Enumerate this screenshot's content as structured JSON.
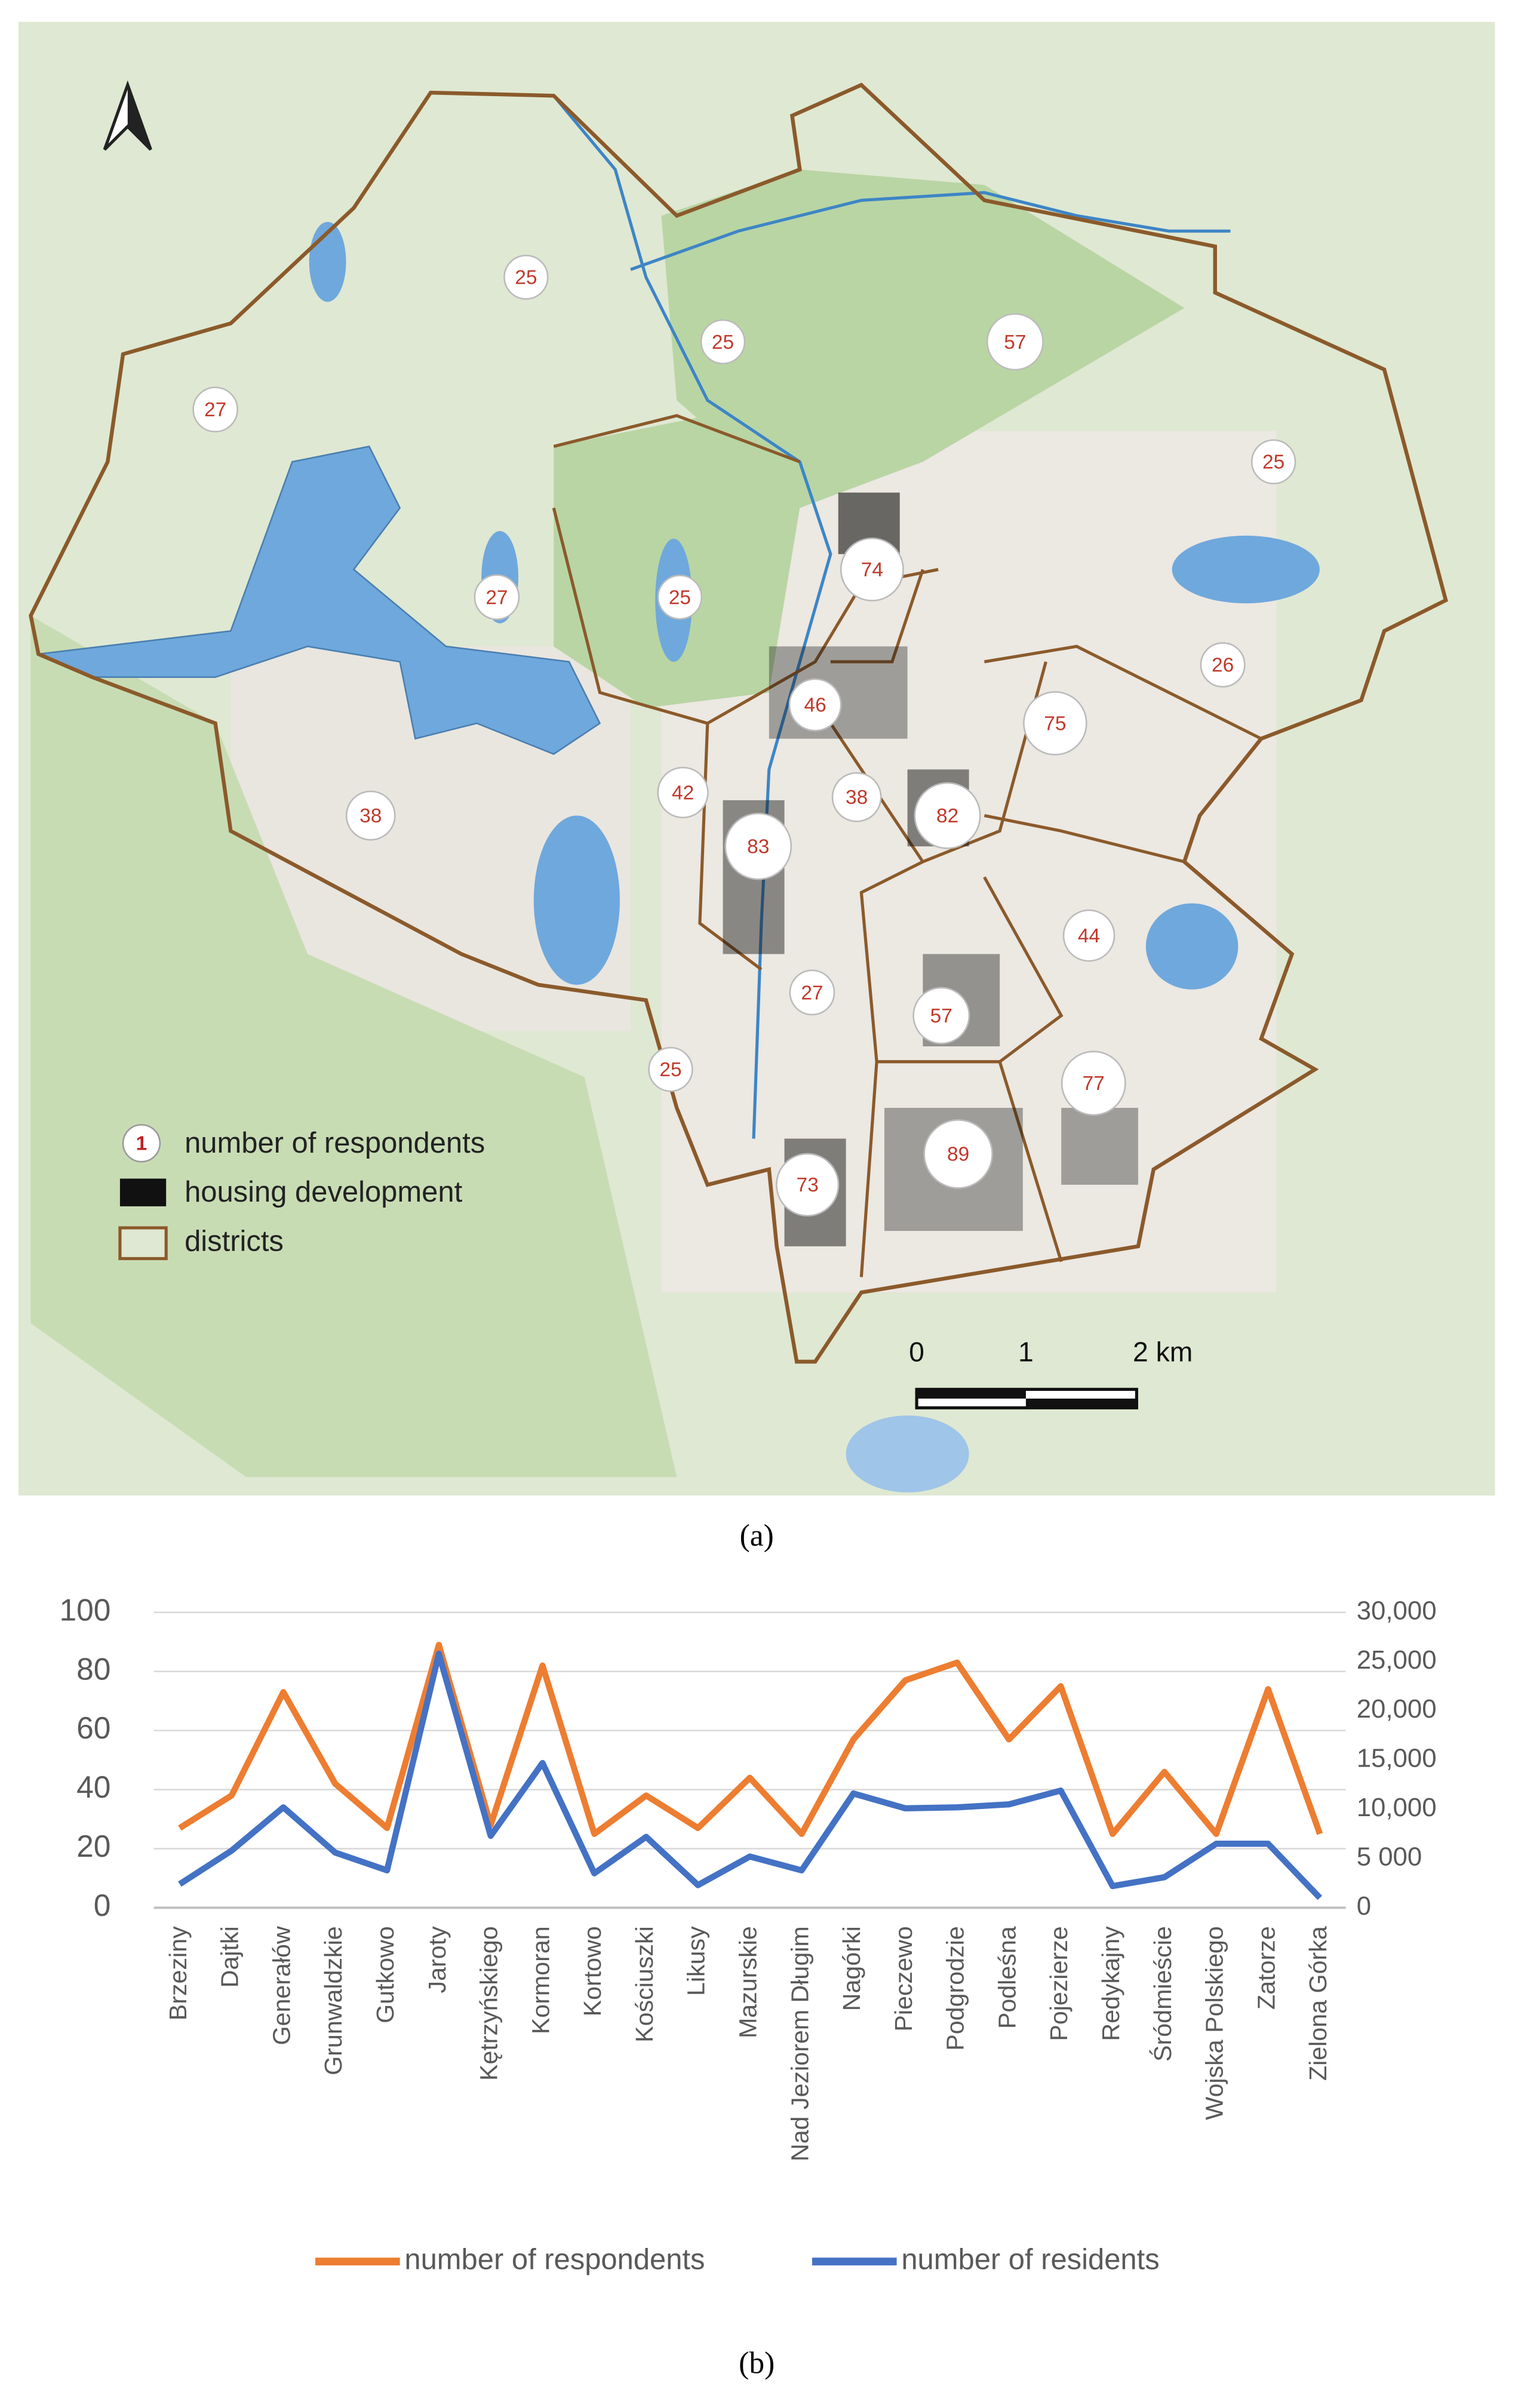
{
  "map": {
    "caption": "(a)",
    "respondent_counts": [
      25,
      25,
      57,
      27,
      25,
      74,
      27,
      25,
      26,
      46,
      75,
      42,
      38,
      82,
      38,
      83,
      44,
      27,
      57,
      25,
      77,
      89,
      73
    ],
    "legend": {
      "marker_sample": "1",
      "respondents": "number of respondents",
      "housing": "housing development",
      "districts": "districts"
    },
    "scale": {
      "zero": "0",
      "one": "1",
      "two": "2 km"
    }
  },
  "chart_data": {
    "type": "line",
    "caption": "(b)",
    "categories": [
      "Brzeziny",
      "Dajtki",
      "Generałów",
      "Grunwaldzkie",
      "Gutkowo",
      "Jaroty",
      "Kętrzyńskiego",
      "Kormoran",
      "Kortowo",
      "Kościuszki",
      "Likusy",
      "Mazurskie",
      "Nad Jeziorem Długim",
      "Nagórki",
      "Pieczewo",
      "Podgrodzie",
      "Podleśna",
      "Pojezierze",
      "Redykajny",
      "Śródmieście",
      "Wojska Polskiego",
      "Zatorze",
      "Zielona Górka"
    ],
    "series": [
      {
        "name": "number of respondents",
        "color": "#ed7d31",
        "values": [
          27,
          38,
          73,
          42,
          27,
          89,
          28,
          82,
          25,
          38,
          27,
          44,
          25,
          57,
          77,
          83,
          57,
          75,
          25,
          46,
          25,
          74,
          25
        ]
      },
      {
        "name": "number of residents",
        "color": "#4472c4",
        "axis": "y2",
        "values": [
          2400,
          5800,
          10200,
          5600,
          3800,
          25800,
          7300,
          14700,
          3500,
          7200,
          2300,
          5200,
          3800,
          11600,
          10100,
          10200,
          10500,
          11900,
          2200,
          3100,
          6500,
          6500,
          1000
        ]
      }
    ],
    "ylim": [
      0,
      100
    ],
    "yticks": [
      0,
      20,
      40,
      60,
      80,
      100
    ],
    "y2lim": [
      0,
      30000
    ],
    "y2ticks": [
      0,
      {
        "value": 5000,
        "label": "5 000"
      },
      {
        "value": 10000,
        "label": "10,000"
      },
      {
        "value": 15000,
        "label": "15,000"
      },
      {
        "value": 20000,
        "label": "20,000"
      },
      {
        "value": 25000,
        "label": "25,000"
      },
      {
        "value": 30000,
        "label": "30,000"
      }
    ],
    "grid": true,
    "legend": "bottom"
  }
}
